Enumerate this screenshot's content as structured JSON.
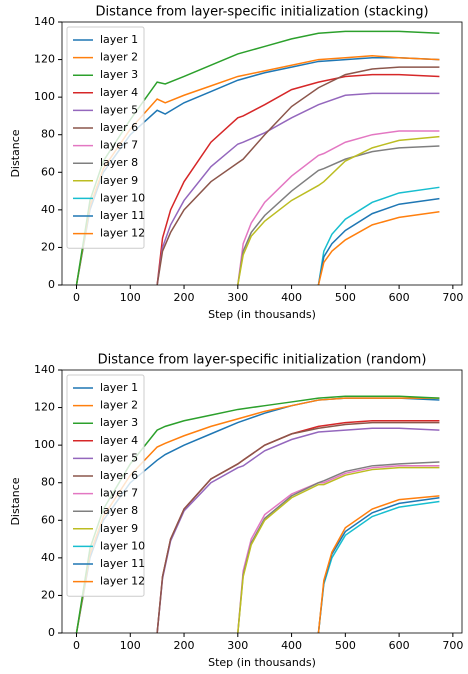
{
  "chart_data": [
    {
      "type": "line",
      "title": "Distance from layer-specific initialization (stacking)",
      "x_label": "Step (in thousands)",
      "y_label": "Distance",
      "xlim": [
        -27,
        717
      ],
      "ylim": [
        0,
        140
      ],
      "xticks": [
        0,
        100,
        200,
        300,
        400,
        500,
        600,
        700
      ],
      "yticks": [
        0,
        20,
        40,
        60,
        80,
        100,
        120,
        140
      ],
      "grid": false,
      "legend": "upper-left",
      "series": [
        {
          "name": "layer 1",
          "color": "#1f77b4",
          "x": [
            0,
            25,
            50,
            100,
            150,
            165,
            200,
            250,
            300,
            350,
            400,
            450,
            500,
            550,
            600,
            675
          ],
          "values": [
            0,
            40,
            60,
            80,
            93,
            91,
            97,
            103,
            109,
            113,
            116,
            119,
            120,
            121,
            121,
            120
          ]
        },
        {
          "name": "layer 2",
          "color": "#ff7f0e",
          "x": [
            0,
            25,
            50,
            100,
            150,
            165,
            200,
            250,
            300,
            350,
            400,
            450,
            500,
            550,
            600,
            675
          ],
          "values": [
            0,
            42,
            62,
            83,
            99,
            97,
            101,
            106,
            111,
            114,
            117,
            120,
            121,
            122,
            121,
            120
          ]
        },
        {
          "name": "layer 3",
          "color": "#2ca02c",
          "x": [
            0,
            25,
            50,
            100,
            150,
            165,
            200,
            250,
            300,
            350,
            400,
            450,
            500,
            550,
            600,
            675
          ],
          "values": [
            0,
            45,
            66,
            88,
            108,
            107,
            111,
            117,
            123,
            127,
            131,
            134,
            135,
            135,
            135,
            134
          ]
        },
        {
          "name": "layer 4",
          "color": "#d62728",
          "x": [
            150,
            160,
            175,
            200,
            250,
            300,
            310,
            350,
            400,
            450,
            500,
            550,
            600,
            675
          ],
          "values": [
            0,
            25,
            40,
            55,
            76,
            89,
            90,
            96,
            104,
            108,
            111,
            112,
            112,
            111
          ]
        },
        {
          "name": "layer 5",
          "color": "#9467bd",
          "x": [
            150,
            160,
            175,
            200,
            250,
            300,
            310,
            350,
            400,
            450,
            500,
            550,
            600,
            675
          ],
          "values": [
            0,
            20,
            32,
            45,
            63,
            75,
            76,
            81,
            89,
            96,
            101,
            102,
            102,
            102
          ]
        },
        {
          "name": "layer 6",
          "color": "#8c564b",
          "x": [
            150,
            160,
            175,
            200,
            250,
            300,
            310,
            350,
            400,
            450,
            500,
            550,
            600,
            675
          ],
          "values": [
            0,
            18,
            28,
            40,
            55,
            65,
            67,
            80,
            95,
            105,
            112,
            115,
            116,
            116
          ]
        },
        {
          "name": "layer 7",
          "color": "#e377c2",
          "x": [
            300,
            310,
            325,
            350,
            400,
            450,
            460,
            500,
            550,
            600,
            675
          ],
          "values": [
            0,
            22,
            33,
            44,
            58,
            69,
            70,
            76,
            80,
            82,
            82
          ]
        },
        {
          "name": "layer 8",
          "color": "#7f7f7f",
          "x": [
            300,
            310,
            325,
            350,
            400,
            450,
            460,
            500,
            550,
            600,
            675
          ],
          "values": [
            0,
            18,
            28,
            37,
            50,
            61,
            62,
            67,
            71,
            73,
            74
          ]
        },
        {
          "name": "layer 9",
          "color": "#bcbd22",
          "x": [
            300,
            310,
            325,
            350,
            400,
            450,
            460,
            500,
            550,
            600,
            675
          ],
          "values": [
            0,
            16,
            26,
            34,
            45,
            53,
            55,
            66,
            73,
            77,
            79
          ]
        },
        {
          "name": "layer 10",
          "color": "#17becf",
          "x": [
            450,
            460,
            475,
            500,
            550,
            600,
            675
          ],
          "values": [
            0,
            18,
            27,
            35,
            44,
            49,
            52
          ]
        },
        {
          "name": "layer 11",
          "color": "#1f77b4",
          "x": [
            450,
            460,
            475,
            500,
            550,
            600,
            675
          ],
          "values": [
            0,
            15,
            22,
            29,
            38,
            43,
            46
          ]
        },
        {
          "name": "layer 12",
          "color": "#ff7f0e",
          "x": [
            450,
            460,
            475,
            500,
            550,
            600,
            675
          ],
          "values": [
            0,
            12,
            18,
            24,
            32,
            36,
            39
          ]
        }
      ]
    },
    {
      "type": "line",
      "title": "Distance from layer-specific initialization (random)",
      "x_label": "Step (in thousands)",
      "y_label": "Distance",
      "xlim": [
        -27,
        717
      ],
      "ylim": [
        0,
        140
      ],
      "xticks": [
        0,
        100,
        200,
        300,
        400,
        500,
        600,
        700
      ],
      "yticks": [
        0,
        20,
        40,
        60,
        80,
        100,
        120,
        140
      ],
      "grid": false,
      "legend": "upper-left",
      "series": [
        {
          "name": "layer 1",
          "color": "#1f77b4",
          "x": [
            0,
            25,
            50,
            100,
            150,
            165,
            200,
            250,
            300,
            350,
            400,
            450,
            500,
            550,
            600,
            675
          ],
          "values": [
            0,
            40,
            60,
            80,
            92,
            95,
            100,
            106,
            112,
            117,
            121,
            124,
            125,
            125,
            125,
            124
          ]
        },
        {
          "name": "layer 2",
          "color": "#ff7f0e",
          "x": [
            0,
            25,
            50,
            100,
            150,
            165,
            200,
            250,
            300,
            350,
            400,
            450,
            500,
            550,
            600,
            675
          ],
          "values": [
            0,
            42,
            62,
            84,
            99,
            101,
            105,
            110,
            114,
            118,
            121,
            124,
            125,
            125,
            125,
            125
          ]
        },
        {
          "name": "layer 3",
          "color": "#2ca02c",
          "x": [
            0,
            25,
            50,
            100,
            150,
            165,
            200,
            250,
            300,
            350,
            400,
            450,
            500,
            550,
            600,
            675
          ],
          "values": [
            0,
            45,
            66,
            90,
            108,
            110,
            113,
            116,
            119,
            121,
            123,
            125,
            126,
            126,
            126,
            125
          ]
        },
        {
          "name": "layer 4",
          "color": "#d62728",
          "x": [
            150,
            160,
            175,
            200,
            250,
            300,
            310,
            350,
            400,
            450,
            500,
            550,
            600,
            675
          ],
          "values": [
            0,
            30,
            50,
            66,
            82,
            90,
            92,
            100,
            106,
            110,
            112,
            113,
            113,
            113
          ]
        },
        {
          "name": "layer 5",
          "color": "#9467bd",
          "x": [
            150,
            160,
            175,
            200,
            250,
            300,
            310,
            350,
            400,
            450,
            500,
            550,
            600,
            675
          ],
          "values": [
            0,
            29,
            49,
            65,
            80,
            88,
            89,
            97,
            103,
            107,
            108,
            109,
            109,
            108
          ]
        },
        {
          "name": "layer 6",
          "color": "#8c564b",
          "x": [
            150,
            160,
            175,
            200,
            250,
            300,
            310,
            350,
            400,
            450,
            500,
            550,
            600,
            675
          ],
          "values": [
            0,
            30,
            50,
            66,
            82,
            90,
            92,
            100,
            106,
            109,
            111,
            112,
            112,
            112
          ]
        },
        {
          "name": "layer 7",
          "color": "#e377c2",
          "x": [
            300,
            310,
            325,
            350,
            400,
            450,
            460,
            500,
            550,
            600,
            675
          ],
          "values": [
            0,
            33,
            50,
            63,
            74,
            80,
            80,
            85,
            88,
            89,
            89
          ]
        },
        {
          "name": "layer 8",
          "color": "#7f7f7f",
          "x": [
            300,
            310,
            325,
            350,
            400,
            450,
            460,
            500,
            550,
            600,
            675
          ],
          "values": [
            0,
            31,
            48,
            61,
            73,
            80,
            81,
            86,
            89,
            90,
            91
          ]
        },
        {
          "name": "layer 9",
          "color": "#bcbd22",
          "x": [
            300,
            310,
            325,
            350,
            400,
            450,
            460,
            500,
            550,
            600,
            675
          ],
          "values": [
            0,
            30,
            47,
            60,
            72,
            79,
            79,
            84,
            87,
            88,
            88
          ]
        },
        {
          "name": "layer 10",
          "color": "#17becf",
          "x": [
            450,
            460,
            475,
            500,
            550,
            600,
            675
          ],
          "values": [
            0,
            26,
            40,
            52,
            62,
            67,
            70
          ]
        },
        {
          "name": "layer 11",
          "color": "#1f77b4",
          "x": [
            450,
            460,
            475,
            500,
            550,
            600,
            675
          ],
          "values": [
            0,
            27,
            42,
            54,
            64,
            69,
            72
          ]
        },
        {
          "name": "layer 12",
          "color": "#ff7f0e",
          "x": [
            450,
            460,
            475,
            500,
            550,
            600,
            675
          ],
          "values": [
            0,
            28,
            43,
            56,
            66,
            71,
            73
          ]
        }
      ]
    }
  ]
}
